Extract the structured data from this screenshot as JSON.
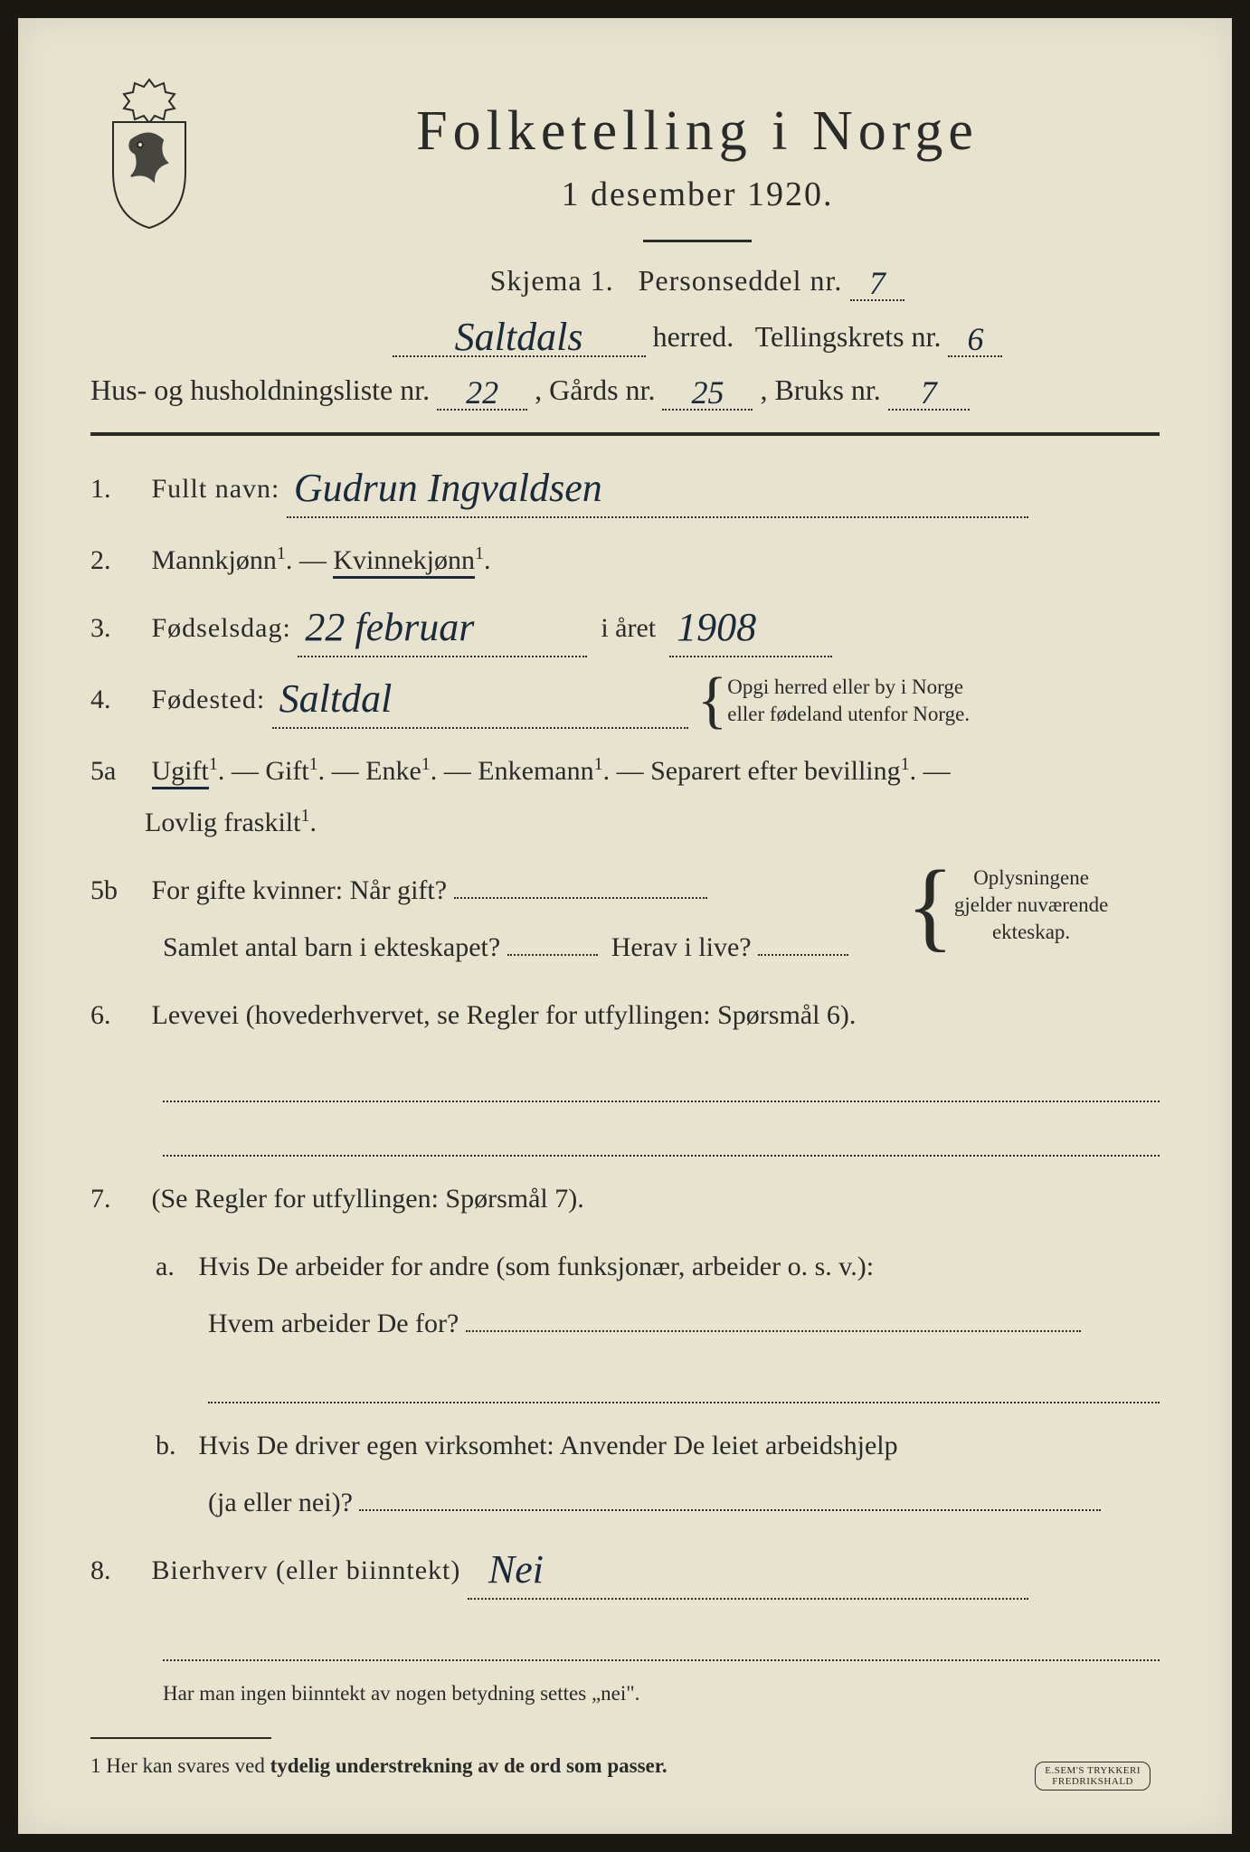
{
  "colors": {
    "paper": "#e8e3cf",
    "ink": "#2a2a28",
    "handwriting": "#1a2a3a",
    "scanner_bg": "#1a1812"
  },
  "header": {
    "title": "Folketelling i Norge",
    "date_line": "1 desember 1920.",
    "skjema_label": "Skjema 1.",
    "personseddel_label": "Personseddel nr.",
    "personseddel_nr": "7",
    "herred_value": "Saltdals",
    "herred_label": "herred.",
    "tellingskrets_label": "Tellingskrets nr.",
    "tellingskrets_nr": "6",
    "hus_label": "Hus- og husholdningsliste nr.",
    "hus_nr": "22",
    "gards_label": ", Gårds nr.",
    "gards_nr": "25",
    "bruks_label": ", Bruks nr.",
    "bruks_nr": "7"
  },
  "q1": {
    "num": "1.",
    "label": "Fullt navn:",
    "value": "Gudrun Ingvaldsen"
  },
  "q2": {
    "num": "2.",
    "opt_m": "Mannkjønn",
    "dash": " — ",
    "opt_k": "Kvinnekjønn",
    "sup": "1",
    "dot": "."
  },
  "q3": {
    "num": "3.",
    "label": "Fødselsdag:",
    "day_month": "22 februar",
    "mid": "i året",
    "year": "1908"
  },
  "q4": {
    "num": "4.",
    "label": "Fødested:",
    "value": "Saltdal",
    "note_l1": "Opgi herred eller by i Norge",
    "note_l2": "eller fødeland utenfor Norge."
  },
  "q5a": {
    "num": "5a",
    "opts": [
      "Ugift",
      "Gift",
      "Enke",
      "Enkemann",
      "Separert efter bevilling",
      "Lovlig fraskilt"
    ],
    "selected_index": 0,
    "sup": "1",
    "dot": ".",
    "dash": " — "
  },
  "q5b": {
    "num": "5b",
    "l1_a": "For gifte kvinner:  Når gift?",
    "l2_a": "Samlet antal barn i ekteskapet?",
    "l2_b": "Herav i live?",
    "note_l1": "Oplysningene",
    "note_l2": "gjelder nuværende",
    "note_l3": "ekteskap."
  },
  "q6": {
    "num": "6.",
    "text": "Levevei (hovederhvervet, se Regler for utfyllingen:  Spørsmål 6)."
  },
  "q7": {
    "num": "7.",
    "intro": "(Se Regler for utfyllingen:  Spørsmål 7).",
    "a_letter": "a.",
    "a_l1": "Hvis De arbeider for andre (som funksjonær, arbeider o. s. v.):",
    "a_l2": "Hvem arbeider De for?",
    "b_letter": "b.",
    "b_l1": "Hvis De driver egen virksomhet:  Anvender De leiet arbeidshjelp",
    "b_l2": "(ja eller nei)?"
  },
  "q8": {
    "num": "8.",
    "label": "Bierhverv (eller biinntekt)",
    "value": "Nei"
  },
  "foot1": "Har man ingen biinntekt av nogen betydning settes „nei\".",
  "foot2_pre": "1  Her kan svares ved ",
  "foot2_bold": "tydelig understrekning av de ord som passer.",
  "printer": {
    "l1": "E.SEM'S TRYKKERI",
    "l2": "FREDRIKSHALD"
  }
}
